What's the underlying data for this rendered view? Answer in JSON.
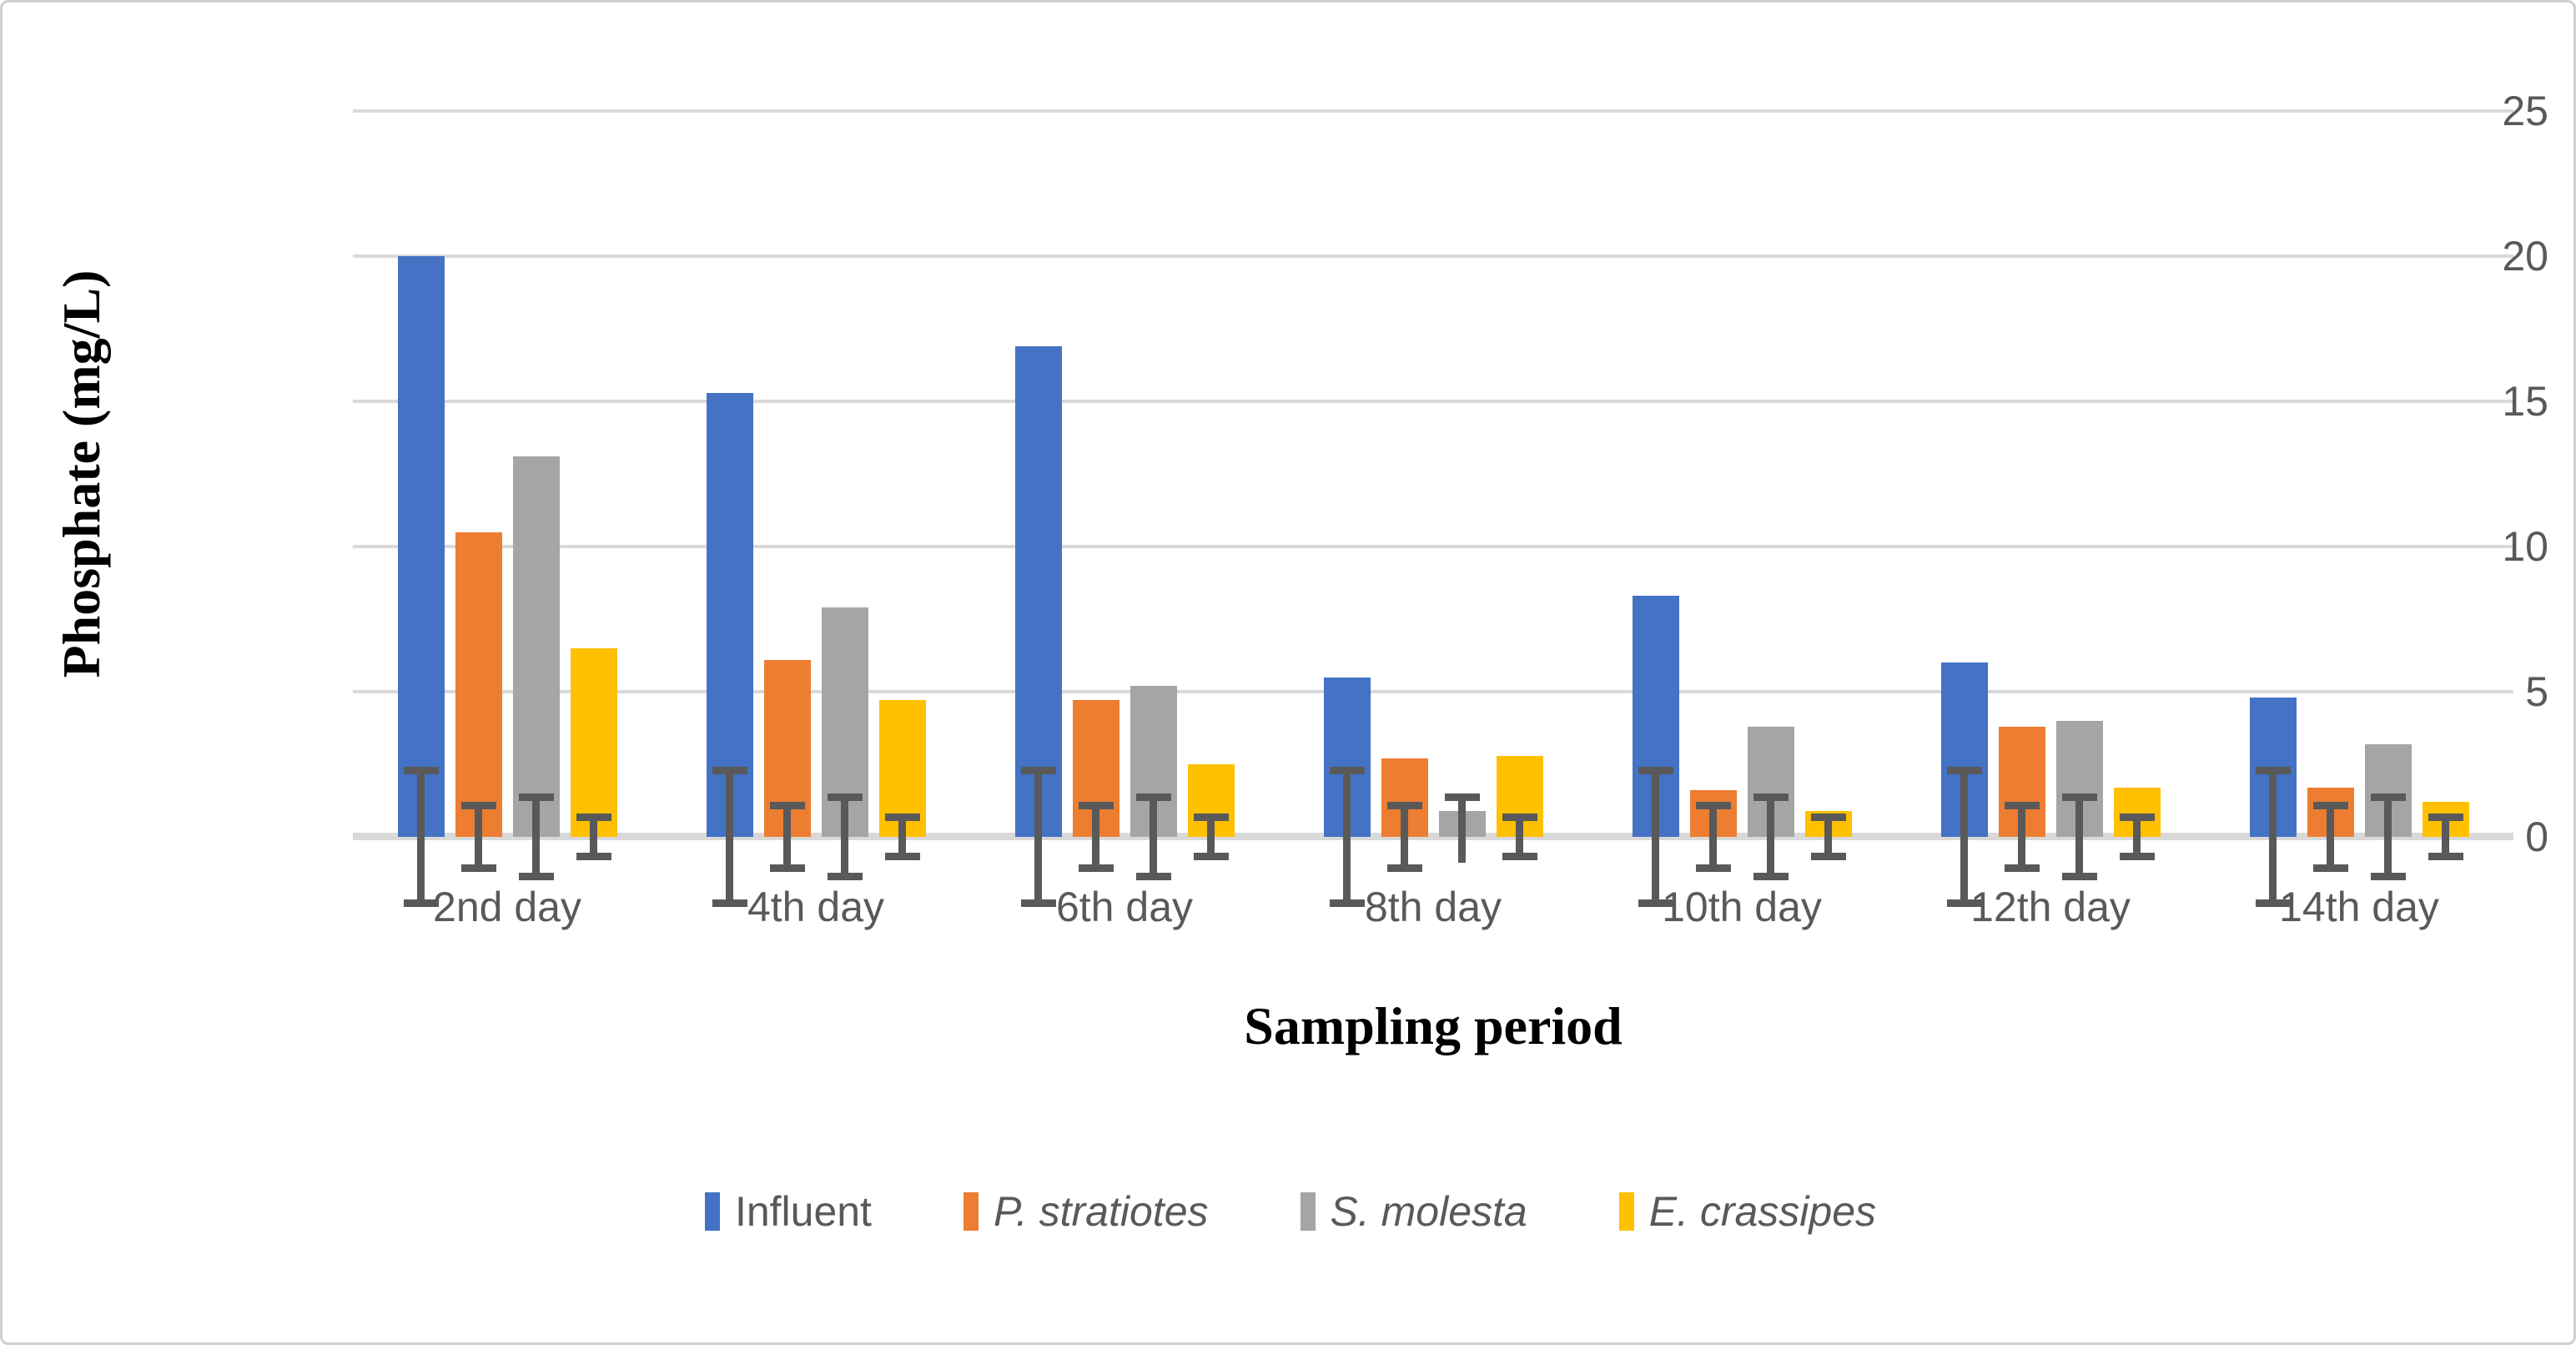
{
  "figure": {
    "background": "#FFFFFF",
    "border_color": "#CFCFCF"
  },
  "chart_data": {
    "type": "bar",
    "title": "",
    "xlabel": "Sampling period",
    "ylabel": "Phosphate (mg/L)",
    "ylim": [
      0,
      25
    ],
    "yticks": [
      0,
      5,
      10,
      15,
      20,
      25
    ],
    "grid": true,
    "gridline_color": "#D9D9D9",
    "tick_label_color": "#595959",
    "error_bar_color": "#595959",
    "legend_position": "bottom",
    "categories": [
      "2nd day",
      "4th day",
      "6th day",
      "8th day",
      "10th day",
      "12th day",
      "14th day"
    ],
    "series": [
      {
        "name": "Influent",
        "italic": false,
        "color": "#4472C4",
        "error": 2.4,
        "values": [
          20.0,
          15.3,
          16.9,
          5.5,
          8.3,
          6.0,
          4.8
        ]
      },
      {
        "name": "P. stratiotes",
        "italic": true,
        "color": "#ED7D31",
        "error": 1.2,
        "values": [
          10.5,
          6.1,
          4.7,
          2.7,
          1.6,
          3.8,
          1.7
        ]
      },
      {
        "name": "S. molesta",
        "italic": true,
        "color": "#A5A5A5",
        "error": 1.5,
        "values": [
          13.1,
          7.9,
          5.2,
          0.9,
          3.8,
          4.0,
          3.2
        ]
      },
      {
        "name": "E. crassipes",
        "italic": true,
        "color": "#FFC000",
        "error": 0.8,
        "values": [
          6.5,
          4.7,
          2.5,
          2.8,
          0.9,
          1.7,
          1.2
        ]
      }
    ]
  }
}
